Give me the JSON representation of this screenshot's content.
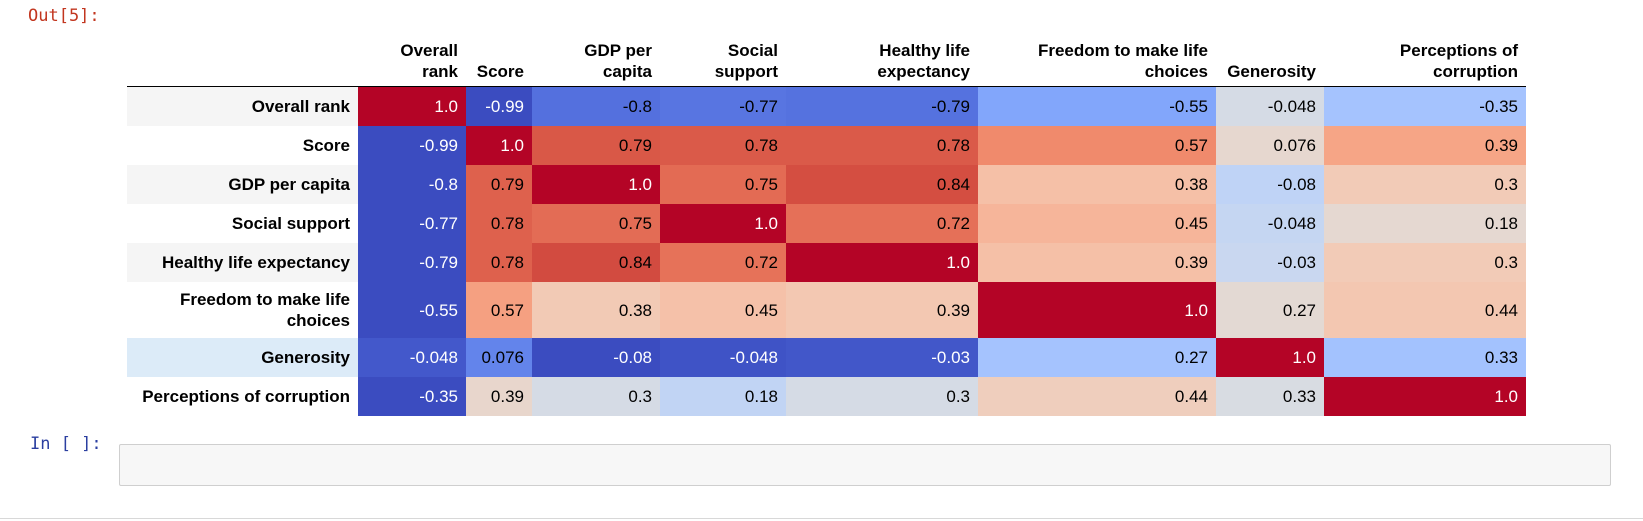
{
  "notebook": {
    "out_prompt": "Out[5]:",
    "in_prompt": "In [ ]:",
    "cell_source": ""
  },
  "table": {
    "columns": [
      [
        "Overall",
        "rank"
      ],
      [
        "Score"
      ],
      [
        "GDP per",
        "capita"
      ],
      [
        "Social",
        "support"
      ],
      [
        "Healthy life",
        "expectancy"
      ],
      [
        "Freedom to make life",
        "choices"
      ],
      [
        "Generosity"
      ],
      [
        "Perceptions of",
        "corruption"
      ]
    ],
    "rows": [
      {
        "label": [
          "Overall rank"
        ],
        "cells": [
          {
            "v": "1.0",
            "bg": "#b40426",
            "fg": "#ffffff"
          },
          {
            "v": "-0.99",
            "bg": "#3b4cc0",
            "fg": "#ffffff"
          },
          {
            "v": "-0.8",
            "bg": "#5470de",
            "fg": "#000000"
          },
          {
            "v": "-0.77",
            "bg": "#5875e1",
            "fg": "#000000"
          },
          {
            "v": "-0.79",
            "bg": "#5572df",
            "fg": "#000000"
          },
          {
            "v": "-0.55",
            "bg": "#82a6fb",
            "fg": "#000000"
          },
          {
            "v": "-0.048",
            "bg": "#d5dbe5",
            "fg": "#000000"
          },
          {
            "v": "-0.35",
            "bg": "#a5c3fe",
            "fg": "#000000"
          }
        ]
      },
      {
        "label": [
          "Score"
        ],
        "cells": [
          {
            "v": "-0.99",
            "bg": "#3b4cc0",
            "fg": "#ffffff"
          },
          {
            "v": "1.0",
            "bg": "#b40426",
            "fg": "#ffffff"
          },
          {
            "v": "0.79",
            "bg": "#d95847",
            "fg": "#000000"
          },
          {
            "v": "0.78",
            "bg": "#da5a49",
            "fg": "#000000"
          },
          {
            "v": "0.78",
            "bg": "#da5a49",
            "fg": "#000000"
          },
          {
            "v": "0.57",
            "bg": "#f08a6c",
            "fg": "#000000"
          },
          {
            "v": "0.076",
            "bg": "#e6d7cf",
            "fg": "#000000"
          },
          {
            "v": "0.39",
            "bg": "#f6a586",
            "fg": "#000000"
          }
        ]
      },
      {
        "label": [
          "GDP per capita"
        ],
        "cells": [
          {
            "v": "-0.8",
            "bg": "#3b4cc0",
            "fg": "#ffffff"
          },
          {
            "v": "0.79",
            "bg": "#de614d",
            "fg": "#000000"
          },
          {
            "v": "1.0",
            "bg": "#b40426",
            "fg": "#ffffff"
          },
          {
            "v": "0.75",
            "bg": "#e36b54",
            "fg": "#000000"
          },
          {
            "v": "0.84",
            "bg": "#d44e41",
            "fg": "#000000"
          },
          {
            "v": "0.38",
            "bg": "#f5c0a7",
            "fg": "#000000"
          },
          {
            "v": "-0.08",
            "bg": "#bfd3f6",
            "fg": "#000000"
          },
          {
            "v": "0.3",
            "bg": "#f2cbb7",
            "fg": "#000000"
          }
        ]
      },
      {
        "label": [
          "Social support"
        ],
        "cells": [
          {
            "v": "-0.77",
            "bg": "#3b4cc0",
            "fg": "#ffffff"
          },
          {
            "v": "0.78",
            "bg": "#de614d",
            "fg": "#000000"
          },
          {
            "v": "0.75",
            "bg": "#e36c55",
            "fg": "#000000"
          },
          {
            "v": "1.0",
            "bg": "#b40426",
            "fg": "#ffffff"
          },
          {
            "v": "0.72",
            "bg": "#e57058",
            "fg": "#000000"
          },
          {
            "v": "0.45",
            "bg": "#f6b59a",
            "fg": "#000000"
          },
          {
            "v": "-0.048",
            "bg": "#c5d6f2",
            "fg": "#000000"
          },
          {
            "v": "0.18",
            "bg": "#e5d8d1",
            "fg": "#000000"
          }
        ]
      },
      {
        "label": [
          "Healthy life expectancy"
        ],
        "cells": [
          {
            "v": "-0.79",
            "bg": "#3b4cc0",
            "fg": "#ffffff"
          },
          {
            "v": "0.78",
            "bg": "#de614d",
            "fg": "#000000"
          },
          {
            "v": "0.84",
            "bg": "#d24b40",
            "fg": "#000000"
          },
          {
            "v": "0.72",
            "bg": "#e67259",
            "fg": "#000000"
          },
          {
            "v": "1.0",
            "bg": "#b40426",
            "fg": "#ffffff"
          },
          {
            "v": "0.39",
            "bg": "#f5c0a7",
            "fg": "#000000"
          },
          {
            "v": "-0.03",
            "bg": "#c9d7f0",
            "fg": "#000000"
          },
          {
            "v": "0.3",
            "bg": "#f2cbb7",
            "fg": "#000000"
          }
        ]
      },
      {
        "label": [
          "Freedom to make life",
          "choices"
        ],
        "cells": [
          {
            "v": "-0.55",
            "bg": "#3b4cc0",
            "fg": "#ffffff"
          },
          {
            "v": "0.57",
            "bg": "#f5a081",
            "fg": "#000000"
          },
          {
            "v": "0.38",
            "bg": "#f2cab5",
            "fg": "#000000"
          },
          {
            "v": "0.45",
            "bg": "#f5c1a9",
            "fg": "#000000"
          },
          {
            "v": "0.39",
            "bg": "#f3c8b2",
            "fg": "#000000"
          },
          {
            "v": "1.0",
            "bg": "#b40426",
            "fg": "#ffffff"
          },
          {
            "v": "0.27",
            "bg": "#e3d9d3",
            "fg": "#000000"
          },
          {
            "v": "0.44",
            "bg": "#f3c7b1",
            "fg": "#000000"
          }
        ]
      },
      {
        "label": [
          "Generosity"
        ],
        "cells": [
          {
            "v": "-0.048",
            "bg": "#4358cb",
            "fg": "#ffffff"
          },
          {
            "v": "0.076",
            "bg": "#6384eb",
            "fg": "#000000"
          },
          {
            "v": "-0.08",
            "bg": "#3b4cc0",
            "fg": "#ffffff"
          },
          {
            "v": "-0.048",
            "bg": "#3f53c6",
            "fg": "#ffffff"
          },
          {
            "v": "-0.03",
            "bg": "#4257c9",
            "fg": "#ffffff"
          },
          {
            "v": "0.27",
            "bg": "#a5c3fe",
            "fg": "#000000"
          },
          {
            "v": "1.0",
            "bg": "#b40426",
            "fg": "#ffffff"
          },
          {
            "v": "0.33",
            "bg": "#a3c2fe",
            "fg": "#000000"
          }
        ]
      },
      {
        "label": [
          "Perceptions of corruption"
        ],
        "cells": [
          {
            "v": "-0.35",
            "bg": "#3b4cc0",
            "fg": "#ffffff"
          },
          {
            "v": "0.39",
            "bg": "#e8d6cc",
            "fg": "#000000"
          },
          {
            "v": "0.3",
            "bg": "#d5dbe5",
            "fg": "#000000"
          },
          {
            "v": "0.18",
            "bg": "#c1d4f4",
            "fg": "#000000"
          },
          {
            "v": "0.3",
            "bg": "#d5dbe5",
            "fg": "#000000"
          },
          {
            "v": "0.44",
            "bg": "#efcebd",
            "fg": "#000000"
          },
          {
            "v": "0.33",
            "bg": "#d8dce2",
            "fg": "#000000"
          },
          {
            "v": "1.0",
            "bg": "#b40426",
            "fg": "#ffffff"
          }
        ]
      }
    ]
  }
}
